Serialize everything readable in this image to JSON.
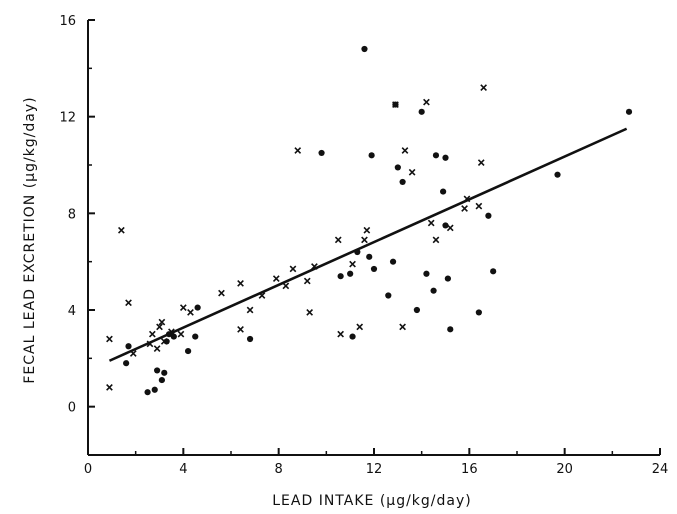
{
  "chart_data": {
    "type": "scatter",
    "title": "",
    "xlabel": "LEAD INTAKE (μg/kg/day)",
    "ylabel": "FECAL LEAD EXCRETION (μg/kg/day)",
    "xlim": [
      0,
      24
    ],
    "ylim": [
      -2,
      16
    ],
    "x_ticks": [
      "0",
      "4",
      "8",
      "12",
      "16",
      "20",
      "24"
    ],
    "y_ticks": [
      "0",
      "4",
      "8",
      "12",
      "16"
    ],
    "x_tick_values": [
      0,
      4,
      8,
      12,
      16,
      20,
      24
    ],
    "y_tick_values": [
      0,
      4,
      8,
      12,
      16
    ],
    "grid": false,
    "series": [
      {
        "marker": "dot",
        "points": [
          [
            1.7,
            2.5
          ],
          [
            1.6,
            1.8
          ],
          [
            2.5,
            0.6
          ],
          [
            2.8,
            0.7
          ],
          [
            2.9,
            1.5
          ],
          [
            3.1,
            1.1
          ],
          [
            3.2,
            1.4
          ],
          [
            3.3,
            2.7
          ],
          [
            3.4,
            3.0
          ],
          [
            3.6,
            2.9
          ],
          [
            4.2,
            2.3
          ],
          [
            4.5,
            2.9
          ],
          [
            4.6,
            4.1
          ],
          [
            6.8,
            2.8
          ],
          [
            9.8,
            10.5
          ],
          [
            10.6,
            5.4
          ],
          [
            11.0,
            5.5
          ],
          [
            11.1,
            2.9
          ],
          [
            11.3,
            6.4
          ],
          [
            11.6,
            14.8
          ],
          [
            11.8,
            6.2
          ],
          [
            11.9,
            10.4
          ],
          [
            12.0,
            5.7
          ],
          [
            12.6,
            4.6
          ],
          [
            12.8,
            6.0
          ],
          [
            13.0,
            9.9
          ],
          [
            13.2,
            9.3
          ],
          [
            13.8,
            4.0
          ],
          [
            14.0,
            12.2
          ],
          [
            14.2,
            5.5
          ],
          [
            14.5,
            4.8
          ],
          [
            14.6,
            10.4
          ],
          [
            14.9,
            8.9
          ],
          [
            15.0,
            10.3
          ],
          [
            15.1,
            5.3
          ],
          [
            15.2,
            3.2
          ],
          [
            16.4,
            3.9
          ],
          [
            16.8,
            7.9
          ],
          [
            17.0,
            5.6
          ],
          [
            19.7,
            9.6
          ],
          [
            22.7,
            12.2
          ],
          [
            12.9,
            12.5
          ],
          [
            15.0,
            7.5
          ]
        ]
      },
      {
        "marker": "x",
        "points": [
          [
            0.9,
            2.8
          ],
          [
            0.9,
            0.8
          ],
          [
            1.4,
            7.3
          ],
          [
            1.7,
            4.3
          ],
          [
            1.9,
            2.2
          ],
          [
            2.6,
            2.6
          ],
          [
            2.7,
            3.0
          ],
          [
            2.9,
            2.4
          ],
          [
            3.0,
            3.3
          ],
          [
            3.1,
            3.5
          ],
          [
            3.2,
            2.7
          ],
          [
            3.5,
            3.1
          ],
          [
            3.9,
            3.0
          ],
          [
            4.0,
            4.1
          ],
          [
            4.3,
            3.9
          ],
          [
            5.6,
            4.7
          ],
          [
            6.4,
            5.1
          ],
          [
            6.4,
            3.2
          ],
          [
            6.8,
            4.0
          ],
          [
            7.3,
            4.6
          ],
          [
            7.9,
            5.3
          ],
          [
            8.3,
            5.0
          ],
          [
            8.6,
            5.7
          ],
          [
            8.8,
            10.6
          ],
          [
            9.2,
            5.2
          ],
          [
            9.3,
            3.9
          ],
          [
            9.5,
            5.8
          ],
          [
            10.5,
            6.9
          ],
          [
            10.6,
            3.0
          ],
          [
            11.1,
            5.9
          ],
          [
            11.4,
            3.3
          ],
          [
            11.6,
            6.9
          ],
          [
            11.7,
            7.3
          ],
          [
            13.2,
            3.3
          ],
          [
            13.3,
            10.6
          ],
          [
            13.6,
            9.7
          ],
          [
            14.2,
            12.6
          ],
          [
            14.4,
            7.6
          ],
          [
            14.6,
            6.9
          ],
          [
            15.2,
            7.4
          ],
          [
            15.8,
            8.2
          ],
          [
            15.9,
            8.6
          ],
          [
            16.4,
            8.3
          ],
          [
            16.5,
            10.1
          ],
          [
            16.6,
            13.2
          ],
          [
            12.9,
            12.5
          ]
        ]
      }
    ],
    "fit_line": {
      "x": [
        0.9,
        22.6
      ],
      "y": [
        1.9,
        11.5
      ]
    }
  }
}
